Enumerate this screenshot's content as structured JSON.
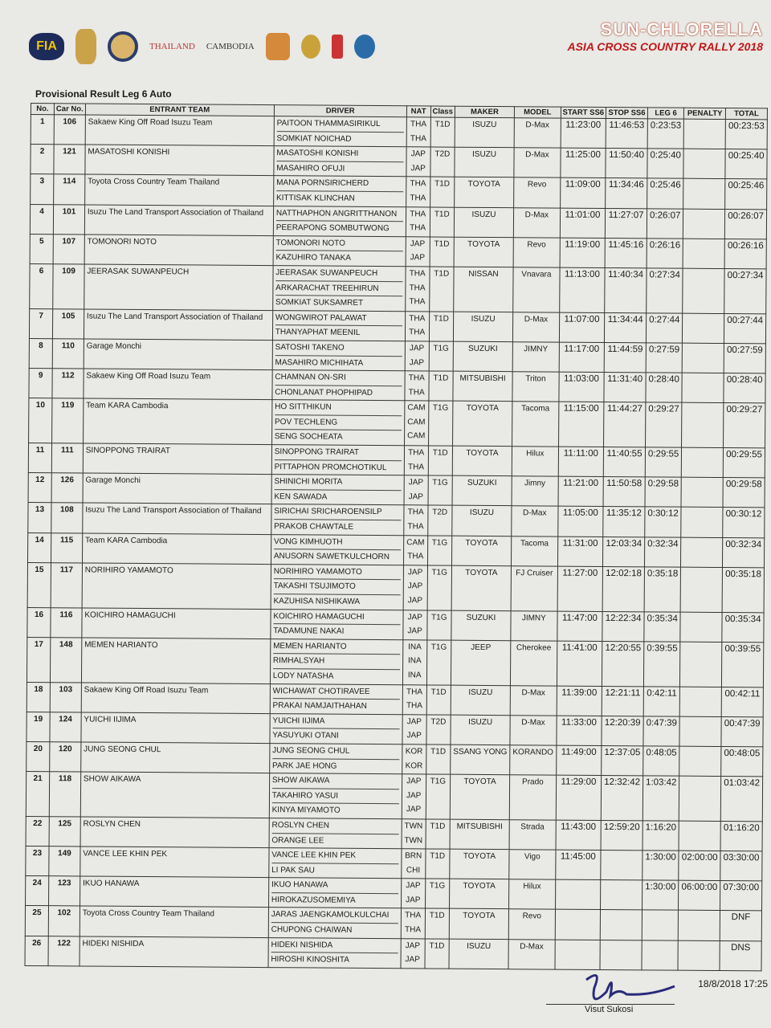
{
  "logos": [
    "FIA",
    "THAILAND",
    "CAMBODIA"
  ],
  "brand": {
    "sponsor": "SUN-CHLORELLA",
    "event": "ASIA CROSS COUNTRY RALLY 2018"
  },
  "title": "Provisional Result Leg 6 Auto",
  "headers": {
    "no": "No.",
    "car": "Car No.",
    "team": "ENTRANT TEAM",
    "driver": "DRIVER",
    "nat": "NAT",
    "class": "Class",
    "maker": "MAKER",
    "model": "MODEL",
    "start": "START SS6",
    "stop": "STOP SS6",
    "leg": "LEG 6",
    "penalty": "PENALTY",
    "total": "TOTAL"
  },
  "rows": [
    {
      "no": "1",
      "car": "106",
      "team": "Sakaew King Off Road Isuzu Team",
      "drivers": [
        [
          "PAITOON THAMMASIRIKUL",
          "THA"
        ],
        [
          "SOMKIAT NOICHAD",
          "THA"
        ]
      ],
      "class": "T1D",
      "maker": "ISUZU",
      "model": "D-Max",
      "start": "11:23:00",
      "stop": "11:46:53",
      "leg": "0:23:53",
      "penalty": "",
      "total": "00:23:53"
    },
    {
      "no": "2",
      "car": "121",
      "team": "MASATOSHI KONISHI",
      "drivers": [
        [
          "MASATOSHI KONISHI",
          "JAP"
        ],
        [
          "MASAHIRO OFUJI",
          "JAP"
        ]
      ],
      "class": "T2D",
      "maker": "ISUZU",
      "model": "D-Max",
      "start": "11:25:00",
      "stop": "11:50:40",
      "leg": "0:25:40",
      "penalty": "",
      "total": "00:25:40"
    },
    {
      "no": "3",
      "car": "114",
      "team": "Toyota Cross Country Team Thailand",
      "drivers": [
        [
          "MANA PORNSIRICHERD",
          "THA"
        ],
        [
          "KITTISAK KLINCHAN",
          "THA"
        ]
      ],
      "class": "T1D",
      "maker": "TOYOTA",
      "model": "Revo",
      "start": "11:09:00",
      "stop": "11:34:46",
      "leg": "0:25:46",
      "penalty": "",
      "total": "00:25:46"
    },
    {
      "no": "4",
      "car": "101",
      "team": "Isuzu The Land Transport Association of Thailand",
      "drivers": [
        [
          "NATTHAPHON ANGRITTHANON",
          "THA"
        ],
        [
          "PEERAPONG SOMBUTWONG",
          "THA"
        ]
      ],
      "class": "T1D",
      "maker": "ISUZU",
      "model": "D-Max",
      "start": "11:01:00",
      "stop": "11:27:07",
      "leg": "0:26:07",
      "penalty": "",
      "total": "00:26:07"
    },
    {
      "no": "5",
      "car": "107",
      "team": "TOMONORI NOTO",
      "drivers": [
        [
          "TOMONORI NOTO",
          "JAP"
        ],
        [
          "KAZUHIRO TANAKA",
          "JAP"
        ]
      ],
      "class": "T1D",
      "maker": "TOYOTA",
      "model": "Revo",
      "start": "11:19:00",
      "stop": "11:45:16",
      "leg": "0:26:16",
      "penalty": "",
      "total": "00:26:16"
    },
    {
      "no": "6",
      "car": "109",
      "team": "JEERASAK SUWANPEUCH",
      "drivers": [
        [
          "JEERASAK SUWANPEUCH",
          "THA"
        ],
        [
          "ARKARACHAT TREEHIRUN",
          "THA"
        ],
        [
          "SOMKIAT SUKSAMRET",
          "THA"
        ]
      ],
      "class": "T1D",
      "maker": "NISSAN",
      "model": "Vnavara",
      "start": "11:13:00",
      "stop": "11:40:34",
      "leg": "0:27:34",
      "penalty": "",
      "total": "00:27:34"
    },
    {
      "no": "7",
      "car": "105",
      "team": "Isuzu The Land Transport Association of Thailand",
      "drivers": [
        [
          "WONGWIROT PALAWAT",
          "THA"
        ],
        [
          "THANYAPHAT MEENIL",
          "THA"
        ]
      ],
      "class": "T1D",
      "maker": "ISUZU",
      "model": "D-Max",
      "start": "11:07:00",
      "stop": "11:34:44",
      "leg": "0:27:44",
      "penalty": "",
      "total": "00:27:44"
    },
    {
      "no": "8",
      "car": "110",
      "team": "Garage Monchi",
      "drivers": [
        [
          "SATOSHI TAKENO",
          "JAP"
        ],
        [
          "MASAHIRO MICHIHATA",
          "JAP"
        ]
      ],
      "class": "T1G",
      "maker": "SUZUKI",
      "model": "JIMNY",
      "start": "11:17:00",
      "stop": "11:44:59",
      "leg": "0:27:59",
      "penalty": "",
      "total": "00:27:59"
    },
    {
      "no": "9",
      "car": "112",
      "team": "Sakaew King Off Road Isuzu Team",
      "drivers": [
        [
          "CHAMNAN ON-SRI",
          "THA"
        ],
        [
          "CHONLANAT PHOPHIPAD",
          "THA"
        ]
      ],
      "class": "T1D",
      "maker": "MITSUBISHI",
      "model": "Triton",
      "start": "11:03:00",
      "stop": "11:31:40",
      "leg": "0:28:40",
      "penalty": "",
      "total": "00:28:40"
    },
    {
      "no": "10",
      "car": "119",
      "team": "Team KARA Cambodia",
      "drivers": [
        [
          "HO SITTHIKUN",
          "CAM"
        ],
        [
          "POV TECHLENG",
          "CAM"
        ],
        [
          "SENG SOCHEATA",
          "CAM"
        ]
      ],
      "class": "T1G",
      "maker": "TOYOTA",
      "model": "Tacoma",
      "start": "11:15:00",
      "stop": "11:44:27",
      "leg": "0:29:27",
      "penalty": "",
      "total": "00:29:27"
    },
    {
      "no": "11",
      "car": "111",
      "team": "SINOPPONG TRAIRAT",
      "drivers": [
        [
          "SINOPPONG TRAIRAT",
          "THA"
        ],
        [
          "PITTAPHON PROMCHOTIKUL",
          "THA"
        ]
      ],
      "class": "T1D",
      "maker": "TOYOTA",
      "model": "Hilux",
      "start": "11:11:00",
      "stop": "11:40:55",
      "leg": "0:29:55",
      "penalty": "",
      "total": "00:29:55"
    },
    {
      "no": "12",
      "car": "126",
      "team": "Garage Monchi",
      "drivers": [
        [
          "SHINICHI MORITA",
          "JAP"
        ],
        [
          "KEN SAWADA",
          "JAP"
        ]
      ],
      "class": "T1G",
      "maker": "SUZUKI",
      "model": "Jimny",
      "start": "11:21:00",
      "stop": "11:50:58",
      "leg": "0:29:58",
      "penalty": "",
      "total": "00:29:58"
    },
    {
      "no": "13",
      "car": "108",
      "team": "Isuzu The Land Transport Association of Thailand",
      "drivers": [
        [
          "SIRICHAI SRICHAROENSILP",
          "THA"
        ],
        [
          "PRAKOB CHAWTALE",
          "THA"
        ]
      ],
      "class": "T2D",
      "maker": "ISUZU",
      "model": "D-Max",
      "start": "11:05:00",
      "stop": "11:35:12",
      "leg": "0:30:12",
      "penalty": "",
      "total": "00:30:12"
    },
    {
      "no": "14",
      "car": "115",
      "team": "Team KARA Cambodia",
      "drivers": [
        [
          "VONG KIMHUOTH",
          "CAM"
        ],
        [
          "ANUSORN SAWETKULCHORN",
          "THA"
        ]
      ],
      "class": "T1G",
      "maker": "TOYOTA",
      "model": "Tacoma",
      "start": "11:31:00",
      "stop": "12:03:34",
      "leg": "0:32:34",
      "penalty": "",
      "total": "00:32:34"
    },
    {
      "no": "15",
      "car": "117",
      "team": "NORIHIRO YAMAMOTO",
      "drivers": [
        [
          "NORIHIRO YAMAMOTO",
          "JAP"
        ],
        [
          "TAKASHI TSUJIMOTO",
          "JAP"
        ],
        [
          "KAZUHISA NISHIKAWA",
          "JAP"
        ]
      ],
      "class": "T1G",
      "maker": "TOYOTA",
      "model": "FJ Cruiser",
      "start": "11:27:00",
      "stop": "12:02:18",
      "leg": "0:35:18",
      "penalty": "",
      "total": "00:35:18"
    },
    {
      "no": "16",
      "car": "116",
      "team": "KOICHIRO HAMAGUCHI",
      "drivers": [
        [
          "KOICHIRO HAMAGUCHI",
          "JAP"
        ],
        [
          "TADAMUNE NAKAI",
          "JAP"
        ]
      ],
      "class": "T1G",
      "maker": "SUZUKI",
      "model": "JIMNY",
      "start": "11:47:00",
      "stop": "12:22:34",
      "leg": "0:35:34",
      "penalty": "",
      "total": "00:35:34"
    },
    {
      "no": "17",
      "car": "148",
      "team": "MEMEN HARIANTO",
      "drivers": [
        [
          "MEMEN HARIANTO",
          "INA"
        ],
        [
          "RIMHALSYAH",
          "INA"
        ],
        [
          "LODY NATASHA",
          "INA"
        ]
      ],
      "class": "T1G",
      "maker": "JEEP",
      "model": "Cherokee",
      "start": "11:41:00",
      "stop": "12:20:55",
      "leg": "0:39:55",
      "penalty": "",
      "total": "00:39:55"
    },
    {
      "no": "18",
      "car": "103",
      "team": "Sakaew King Off Road Isuzu Team",
      "drivers": [
        [
          "WICHAWAT CHOTIRAVEE",
          "THA"
        ],
        [
          "PRAKAI NAMJAITHAHAN",
          "THA"
        ]
      ],
      "class": "T1D",
      "maker": "ISUZU",
      "model": "D-Max",
      "start": "11:39:00",
      "stop": "12:21:11",
      "leg": "0:42:11",
      "penalty": "",
      "total": "00:42:11"
    },
    {
      "no": "19",
      "car": "124",
      "team": "YUICHI IIJIMA",
      "drivers": [
        [
          "YUICHI IIJIMA",
          "JAP"
        ],
        [
          "YASUYUKI OTANI",
          "JAP"
        ]
      ],
      "class": "T2D",
      "maker": "ISUZU",
      "model": "D-Max",
      "start": "11:33:00",
      "stop": "12:20:39",
      "leg": "0:47:39",
      "penalty": "",
      "total": "00:47:39"
    },
    {
      "no": "20",
      "car": "120",
      "team": "JUNG SEONG CHUL",
      "drivers": [
        [
          "JUNG SEONG CHUL",
          "KOR"
        ],
        [
          "PARK JAE HONG",
          "KOR"
        ]
      ],
      "class": "T1D",
      "maker": "SSANG YONG",
      "model": "KORANDO",
      "start": "11:49:00",
      "stop": "12:37:05",
      "leg": "0:48:05",
      "penalty": "",
      "total": "00:48:05"
    },
    {
      "no": "21",
      "car": "118",
      "team": "SHOW AIKAWA",
      "drivers": [
        [
          "SHOW AIKAWA",
          "JAP"
        ],
        [
          "TAKAHIRO YASUI",
          "JAP"
        ],
        [
          "KINYA MIYAMOTO",
          "JAP"
        ]
      ],
      "class": "T1G",
      "maker": "TOYOTA",
      "model": "Prado",
      "start": "11:29:00",
      "stop": "12:32:42",
      "leg": "1:03:42",
      "penalty": "",
      "total": "01:03:42"
    },
    {
      "no": "22",
      "car": "125",
      "team": "ROSLYN CHEN",
      "drivers": [
        [
          "ROSLYN CHEN",
          "TWN"
        ],
        [
          "ORANGE LEE",
          "TWN"
        ]
      ],
      "class": "T1D",
      "maker": "MITSUBISHI",
      "model": "Strada",
      "start": "11:43:00",
      "stop": "12:59:20",
      "leg": "1:16:20",
      "penalty": "",
      "total": "01:16:20"
    },
    {
      "no": "23",
      "car": "149",
      "team": "VANCE LEE KHIN PEK",
      "drivers": [
        [
          "VANCE LEE KHIN PEK",
          "BRN"
        ],
        [
          "LI PAK SAU",
          "CHI"
        ]
      ],
      "class": "T1D",
      "maker": "TOYOTA",
      "model": "Vigo",
      "start": "11:45:00",
      "stop": "",
      "leg": "1:30:00",
      "penalty": "02:00:00",
      "total": "03:30:00"
    },
    {
      "no": "24",
      "car": "123",
      "team": "IKUO HANAWA",
      "drivers": [
        [
          "IKUO HANAWA",
          "JAP"
        ],
        [
          "HIROKAZUSOMEMIYA",
          "JAP"
        ]
      ],
      "class": "T1G",
      "maker": "TOYOTA",
      "model": "Hilux",
      "start": "",
      "stop": "",
      "leg": "1:30:00",
      "penalty": "06:00:00",
      "total": "07:30:00"
    },
    {
      "no": "25",
      "car": "102",
      "team": "Toyota Cross Country Team Thailand",
      "drivers": [
        [
          "JARAS JAENGKAMOLKULCHAI",
          "THA"
        ],
        [
          "CHUPONG CHAIWAN",
          "THA"
        ]
      ],
      "class": "T1D",
      "maker": "TOYOTA",
      "model": "Revo",
      "start": "",
      "stop": "",
      "leg": "",
      "penalty": "",
      "total": "DNF"
    },
    {
      "no": "26",
      "car": "122",
      "team": "HIDEKI NISHIDA",
      "drivers": [
        [
          "HIDEKI NISHIDA",
          "JAP"
        ],
        [
          "HIROSHI KINOSHITA",
          "JAP"
        ]
      ],
      "class": "T1D",
      "maker": "ISUZU",
      "model": "D-Max",
      "start": "",
      "stop": "",
      "leg": "",
      "penalty": "",
      "total": "DNS"
    }
  ],
  "footer": {
    "timestamp": "18/8/2018 17:25",
    "signatory": "Visut Sukosi"
  }
}
